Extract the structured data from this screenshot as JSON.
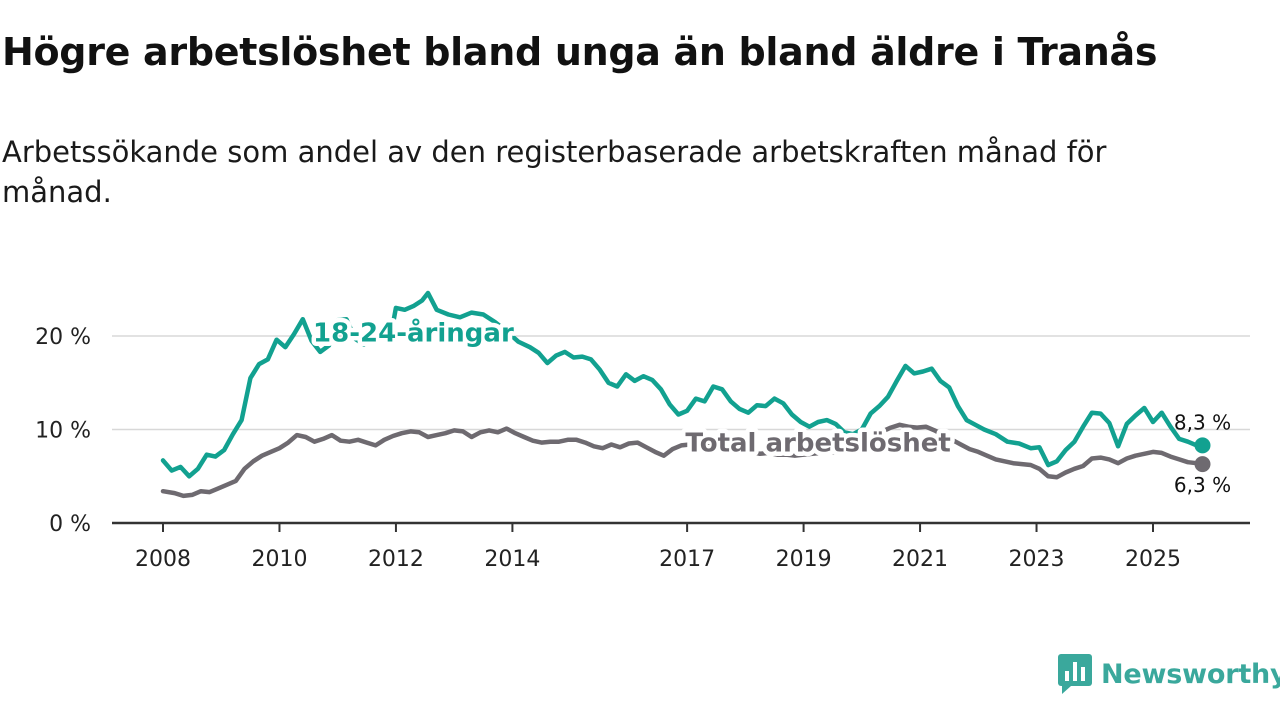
{
  "title": "Högre arbetslöshet bland unga än bland äldre i Tranås",
  "subtitle": "Arbetssökande som andel av den registerbaserade arbetskraften månad för månad.",
  "brand": {
    "name": "Newsworthy",
    "icon": "newsworthy-logo-icon"
  },
  "colors": {
    "youth": "#12a190",
    "total": "#6e6a70",
    "grid": "#d8d8d8",
    "axis": "#333333",
    "text": "#222222"
  },
  "chart_data": {
    "type": "line",
    "title": "Högre arbetslöshet bland unga än bland äldre i Tranås",
    "xlabel": "",
    "ylabel": "",
    "x_range": [
      2008,
      2026.2
    ],
    "ylim": [
      0,
      25
    ],
    "y_ticks": [
      {
        "value": 0,
        "label": "0 %"
      },
      {
        "value": 10,
        "label": "10 %"
      },
      {
        "value": 20,
        "label": "20 %"
      }
    ],
    "x_ticks": [
      {
        "value": 2008,
        "label": "2008"
      },
      {
        "value": 2010,
        "label": "2010"
      },
      {
        "value": 2012,
        "label": "2012"
      },
      {
        "value": 2014,
        "label": "2014"
      },
      {
        "value": 2017,
        "label": "2017"
      },
      {
        "value": 2019,
        "label": "2019"
      },
      {
        "value": 2021,
        "label": "2021"
      },
      {
        "value": 2023,
        "label": "2023"
      },
      {
        "value": 2025,
        "label": "2025"
      }
    ],
    "grid": true,
    "series": [
      {
        "name": "18-24-åringar",
        "color": "#12a190",
        "label_at": [
          2012.3,
          20.4
        ],
        "end_label": "8,3 %",
        "points": [
          [
            2008.0,
            6.7
          ],
          [
            2008.15,
            5.6
          ],
          [
            2008.3,
            6.0
          ],
          [
            2008.45,
            5.0
          ],
          [
            2008.6,
            5.8
          ],
          [
            2008.75,
            7.3
          ],
          [
            2008.9,
            7.1
          ],
          [
            2009.05,
            7.8
          ],
          [
            2009.2,
            9.5
          ],
          [
            2009.35,
            11.0
          ],
          [
            2009.5,
            15.5
          ],
          [
            2009.65,
            17.0
          ],
          [
            2009.8,
            17.5
          ],
          [
            2009.95,
            19.6
          ],
          [
            2010.1,
            18.8
          ],
          [
            2010.25,
            20.2
          ],
          [
            2010.4,
            21.8
          ],
          [
            2010.55,
            19.5
          ],
          [
            2010.7,
            18.3
          ],
          [
            2010.85,
            19.0
          ],
          [
            2011.0,
            21.7
          ],
          [
            2011.15,
            21.8
          ],
          [
            2011.3,
            19.7
          ],
          [
            2011.45,
            19.1
          ],
          [
            2011.6,
            20.5
          ],
          [
            2011.75,
            20.0
          ],
          [
            2011.9,
            19.6
          ],
          [
            2012.0,
            23.0
          ],
          [
            2012.15,
            22.8
          ],
          [
            2012.3,
            23.2
          ],
          [
            2012.45,
            23.8
          ],
          [
            2012.55,
            24.6
          ],
          [
            2012.7,
            22.8
          ],
          [
            2012.9,
            22.3
          ],
          [
            2013.1,
            22.0
          ],
          [
            2013.3,
            22.5
          ],
          [
            2013.5,
            22.3
          ],
          [
            2013.7,
            21.5
          ],
          [
            2013.9,
            20.5
          ],
          [
            2014.1,
            19.4
          ],
          [
            2014.3,
            18.8
          ],
          [
            2014.45,
            18.2
          ],
          [
            2014.6,
            17.1
          ],
          [
            2014.75,
            17.9
          ],
          [
            2014.9,
            18.3
          ],
          [
            2015.05,
            17.7
          ],
          [
            2015.2,
            17.8
          ],
          [
            2015.35,
            17.5
          ],
          [
            2015.5,
            16.4
          ],
          [
            2015.65,
            15.0
          ],
          [
            2015.8,
            14.6
          ],
          [
            2015.95,
            15.9
          ],
          [
            2016.1,
            15.2
          ],
          [
            2016.25,
            15.7
          ],
          [
            2016.4,
            15.3
          ],
          [
            2016.55,
            14.3
          ],
          [
            2016.7,
            12.7
          ],
          [
            2016.85,
            11.6
          ],
          [
            2017.0,
            12.0
          ],
          [
            2017.15,
            13.3
          ],
          [
            2017.3,
            13.0
          ],
          [
            2017.45,
            14.6
          ],
          [
            2017.6,
            14.3
          ],
          [
            2017.75,
            13.0
          ],
          [
            2017.9,
            12.2
          ],
          [
            2018.05,
            11.8
          ],
          [
            2018.2,
            12.6
          ],
          [
            2018.35,
            12.5
          ],
          [
            2018.5,
            13.3
          ],
          [
            2018.65,
            12.8
          ],
          [
            2018.8,
            11.6
          ],
          [
            2018.95,
            10.8
          ],
          [
            2019.1,
            10.3
          ],
          [
            2019.25,
            10.8
          ],
          [
            2019.4,
            11.0
          ],
          [
            2019.55,
            10.6
          ],
          [
            2019.7,
            9.7
          ],
          [
            2019.85,
            9.5
          ],
          [
            2020.0,
            10.0
          ],
          [
            2020.15,
            11.7
          ],
          [
            2020.3,
            12.5
          ],
          [
            2020.45,
            13.5
          ],
          [
            2020.6,
            15.2
          ],
          [
            2020.75,
            16.8
          ],
          [
            2020.9,
            16.0
          ],
          [
            2021.05,
            16.2
          ],
          [
            2021.2,
            16.5
          ],
          [
            2021.35,
            15.2
          ],
          [
            2021.5,
            14.5
          ],
          [
            2021.65,
            12.5
          ],
          [
            2021.8,
            11.0
          ],
          [
            2021.95,
            10.5
          ],
          [
            2022.1,
            10.0
          ],
          [
            2022.3,
            9.5
          ],
          [
            2022.5,
            8.7
          ],
          [
            2022.7,
            8.5
          ],
          [
            2022.9,
            8.0
          ],
          [
            2023.05,
            8.1
          ],
          [
            2023.2,
            6.2
          ],
          [
            2023.35,
            6.6
          ],
          [
            2023.5,
            7.8
          ],
          [
            2023.65,
            8.7
          ],
          [
            2023.8,
            10.3
          ],
          [
            2023.95,
            11.8
          ],
          [
            2024.1,
            11.7
          ],
          [
            2024.25,
            10.7
          ],
          [
            2024.4,
            8.2
          ],
          [
            2024.55,
            10.6
          ],
          [
            2024.7,
            11.5
          ],
          [
            2024.85,
            12.3
          ],
          [
            2025.0,
            10.8
          ],
          [
            2025.15,
            11.8
          ],
          [
            2025.3,
            10.3
          ],
          [
            2025.45,
            9.0
          ],
          [
            2025.6,
            8.7
          ],
          [
            2025.75,
            8.3
          ],
          [
            2025.85,
            8.3
          ]
        ]
      },
      {
        "name": "Total arbetslöshet",
        "color": "#6e6a70",
        "label_at": [
          2019.25,
          8.6
        ],
        "end_label": "6,3 %",
        "points": [
          [
            2008.0,
            3.4
          ],
          [
            2008.2,
            3.2
          ],
          [
            2008.35,
            2.9
          ],
          [
            2008.5,
            3.0
          ],
          [
            2008.65,
            3.4
          ],
          [
            2008.8,
            3.3
          ],
          [
            2008.95,
            3.7
          ],
          [
            2009.1,
            4.1
          ],
          [
            2009.25,
            4.5
          ],
          [
            2009.4,
            5.8
          ],
          [
            2009.55,
            6.6
          ],
          [
            2009.7,
            7.2
          ],
          [
            2009.85,
            7.6
          ],
          [
            2010.0,
            8.0
          ],
          [
            2010.15,
            8.6
          ],
          [
            2010.3,
            9.4
          ],
          [
            2010.45,
            9.2
          ],
          [
            2010.6,
            8.7
          ],
          [
            2010.75,
            9.0
          ],
          [
            2010.9,
            9.4
          ],
          [
            2011.05,
            8.8
          ],
          [
            2011.2,
            8.7
          ],
          [
            2011.35,
            8.9
          ],
          [
            2011.5,
            8.6
          ],
          [
            2011.65,
            8.3
          ],
          [
            2011.8,
            8.9
          ],
          [
            2011.95,
            9.3
          ],
          [
            2012.1,
            9.6
          ],
          [
            2012.25,
            9.8
          ],
          [
            2012.4,
            9.7
          ],
          [
            2012.55,
            9.2
          ],
          [
            2012.7,
            9.4
          ],
          [
            2012.85,
            9.6
          ],
          [
            2013.0,
            9.9
          ],
          [
            2013.15,
            9.8
          ],
          [
            2013.3,
            9.2
          ],
          [
            2013.45,
            9.7
          ],
          [
            2013.6,
            9.9
          ],
          [
            2013.75,
            9.7
          ],
          [
            2013.9,
            10.1
          ],
          [
            2014.05,
            9.6
          ],
          [
            2014.2,
            9.2
          ],
          [
            2014.35,
            8.8
          ],
          [
            2014.5,
            8.6
          ],
          [
            2014.65,
            8.7
          ],
          [
            2014.8,
            8.7
          ],
          [
            2014.95,
            8.9
          ],
          [
            2015.1,
            8.9
          ],
          [
            2015.25,
            8.6
          ],
          [
            2015.4,
            8.2
          ],
          [
            2015.55,
            8.0
          ],
          [
            2015.7,
            8.4
          ],
          [
            2015.85,
            8.1
          ],
          [
            2016.0,
            8.5
          ],
          [
            2016.15,
            8.6
          ],
          [
            2016.3,
            8.1
          ],
          [
            2016.45,
            7.6
          ],
          [
            2016.6,
            7.2
          ],
          [
            2016.75,
            7.9
          ],
          [
            2016.9,
            8.3
          ],
          [
            2017.05,
            8.4
          ],
          [
            2017.2,
            8.7
          ],
          [
            2017.35,
            8.3
          ],
          [
            2017.5,
            8.0
          ],
          [
            2017.65,
            7.8
          ],
          [
            2017.8,
            7.7
          ],
          [
            2017.95,
            7.7
          ],
          [
            2018.1,
            7.6
          ],
          [
            2018.25,
            7.4
          ],
          [
            2018.4,
            7.5
          ],
          [
            2018.55,
            7.3
          ],
          [
            2018.7,
            7.3
          ],
          [
            2018.85,
            7.2
          ],
          [
            2019.0,
            7.3
          ],
          [
            2019.15,
            7.4
          ],
          [
            2019.3,
            7.5
          ],
          [
            2019.45,
            7.6
          ],
          [
            2019.6,
            7.5
          ],
          [
            2019.75,
            7.6
          ],
          [
            2019.9,
            7.8
          ],
          [
            2020.05,
            8.6
          ],
          [
            2020.2,
            9.3
          ],
          [
            2020.35,
            9.8
          ],
          [
            2020.5,
            10.2
          ],
          [
            2020.65,
            10.5
          ],
          [
            2020.8,
            10.3
          ],
          [
            2020.95,
            10.2
          ],
          [
            2021.1,
            10.3
          ],
          [
            2021.25,
            9.9
          ],
          [
            2021.4,
            9.4
          ],
          [
            2021.55,
            8.9
          ],
          [
            2021.7,
            8.4
          ],
          [
            2021.85,
            7.9
          ],
          [
            2022.0,
            7.6
          ],
          [
            2022.15,
            7.2
          ],
          [
            2022.3,
            6.8
          ],
          [
            2022.45,
            6.6
          ],
          [
            2022.6,
            6.4
          ],
          [
            2022.75,
            6.3
          ],
          [
            2022.9,
            6.2
          ],
          [
            2023.05,
            5.8
          ],
          [
            2023.2,
            5.0
          ],
          [
            2023.35,
            4.9
          ],
          [
            2023.5,
            5.4
          ],
          [
            2023.65,
            5.8
          ],
          [
            2023.8,
            6.1
          ],
          [
            2023.95,
            6.9
          ],
          [
            2024.1,
            7.0
          ],
          [
            2024.25,
            6.8
          ],
          [
            2024.4,
            6.4
          ],
          [
            2024.55,
            6.9
          ],
          [
            2024.7,
            7.2
          ],
          [
            2024.85,
            7.4
          ],
          [
            2025.0,
            7.6
          ],
          [
            2025.15,
            7.5
          ],
          [
            2025.3,
            7.1
          ],
          [
            2025.45,
            6.8
          ],
          [
            2025.6,
            6.5
          ],
          [
            2025.75,
            6.4
          ],
          [
            2025.85,
            6.3
          ]
        ]
      }
    ]
  }
}
